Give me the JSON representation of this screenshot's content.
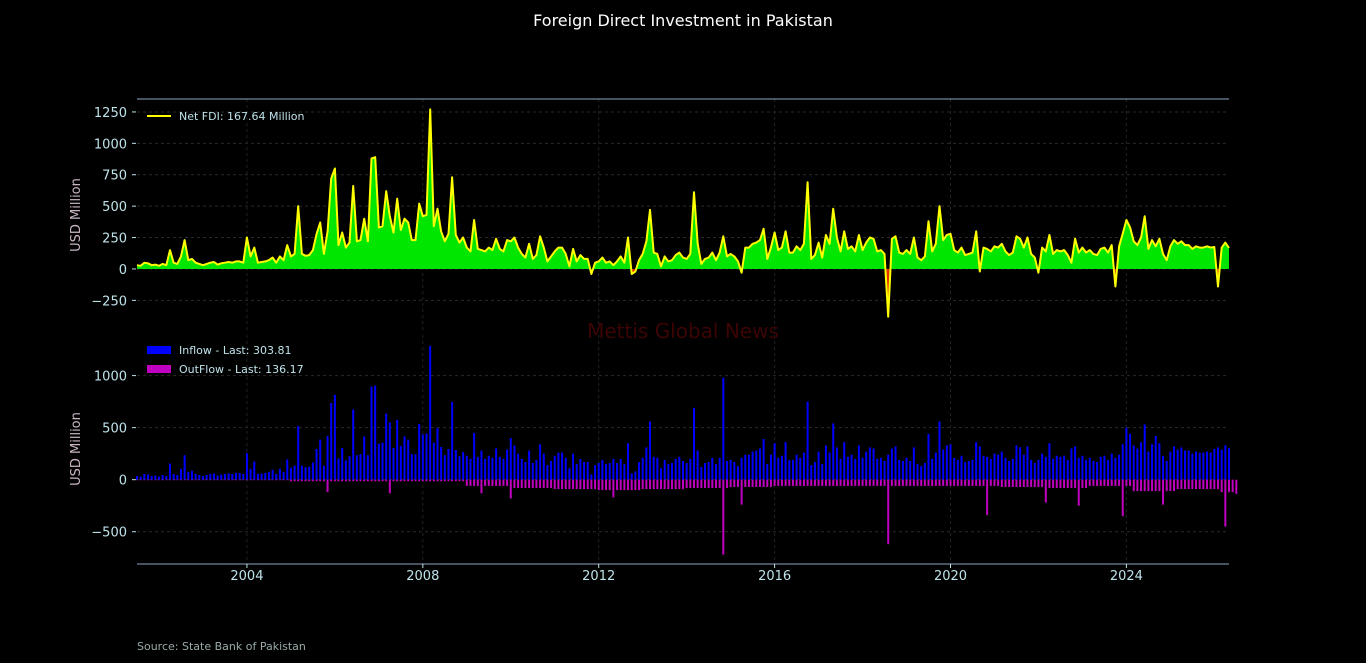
{
  "title": "Foreign Direct Investment in Pakistan",
  "source": "Source: State Bank of Pakistan",
  "watermark": "Mettis Global News",
  "colors": {
    "net_line": "#ffff00",
    "positive_fill": "#00e600",
    "negative_fill": "#e03000",
    "inflow": "#0000ff",
    "outflow": "#c000c0"
  },
  "chart_data": [
    {
      "type": "area",
      "ylabel": "USD Million",
      "ylim": [
        -486,
        1353
      ],
      "yticks": [
        -250,
        0,
        250,
        500,
        750,
        1000,
        1250
      ],
      "grid": true,
      "legend_position": "top-left",
      "legend": "Net FDI: 167.64 Million",
      "x_start": "2001-07",
      "x_frequency": "monthly",
      "series": [
        {
          "name": "Net FDI",
          "values": [
            30,
            25,
            50,
            45,
            30,
            35,
            25,
            40,
            30,
            150,
            50,
            40,
            100,
            230,
            70,
            80,
            50,
            40,
            30,
            40,
            50,
            55,
            35,
            45,
            50,
            55,
            50,
            60,
            60,
            50,
            250,
            100,
            170,
            50,
            55,
            60,
            70,
            90,
            50,
            100,
            70,
            190,
            100,
            120,
            500,
            120,
            105,
            110,
            150,
            280,
            370,
            120,
            300,
            720,
            800,
            190,
            290,
            170,
            210,
            660,
            220,
            230,
            400,
            220,
            880,
            890,
            330,
            340,
            620,
            420,
            290,
            560,
            310,
            400,
            370,
            230,
            230,
            520,
            420,
            430,
            1270,
            340,
            480,
            300,
            220,
            280,
            730,
            270,
            210,
            250,
            170,
            140,
            390,
            160,
            150,
            140,
            170,
            150,
            240,
            160,
            140,
            230,
            220,
            250,
            170,
            120,
            90,
            200,
            80,
            110,
            260,
            170,
            60,
            100,
            140,
            170,
            170,
            120,
            20,
            160,
            60,
            110,
            80,
            80,
            -40,
            50,
            60,
            90,
            50,
            60,
            30,
            60,
            100,
            50,
            250,
            -40,
            -20,
            70,
            120,
            220,
            470,
            130,
            120,
            20,
            100,
            60,
            70,
            110,
            130,
            90,
            80,
            120,
            610,
            200,
            40,
            80,
            90,
            130,
            70,
            130,
            260,
            100,
            120,
            100,
            60,
            -30,
            170,
            170,
            200,
            210,
            230,
            320,
            80,
            170,
            290,
            150,
            170,
            300,
            130,
            130,
            180,
            150,
            200,
            690,
            80,
            110,
            210,
            90,
            270,
            200,
            480,
            250,
            140,
            300,
            160,
            180,
            140,
            270,
            150,
            210,
            250,
            240,
            140,
            150,
            120,
            -380,
            240,
            260,
            130,
            120,
            150,
            120,
            250,
            90,
            70,
            100,
            380,
            140,
            200,
            500,
            230,
            270,
            280,
            150,
            130,
            170,
            110,
            120,
            130,
            300,
            -20,
            170,
            160,
            140,
            180,
            170,
            200,
            140,
            110,
            130,
            260,
            240,
            170,
            250,
            120,
            90,
            -30,
            170,
            140,
            270,
            120,
            150,
            140,
            150,
            110,
            50,
            240,
            130,
            170,
            130,
            150,
            120,
            110,
            160,
            170,
            130,
            190,
            -140,
            180,
            280,
            390,
            330,
            220,
            190,
            250,
            420,
            160,
            230,
            180,
            240,
            120,
            70,
            180,
            230,
            200,
            220,
            190,
            190,
            160,
            180,
            170,
            170,
            180,
            170,
            175,
            -140,
            170,
            210,
            167.64
          ]
        }
      ]
    },
    {
      "type": "bar",
      "ylabel": "USD Million",
      "ylim": [
        -810,
        1390
      ],
      "yticks": [
        -500,
        0,
        500,
        1000
      ],
      "xticks": [
        "2004",
        "2008",
        "2012",
        "2016",
        "2020",
        "2024"
      ],
      "grid": true,
      "legend_position": "top-left",
      "x_start": "2001-07",
      "x_frequency": "monthly",
      "series": [
        {
          "name": "Inflow - Last: 303.81",
          "values": [
            35,
            30,
            55,
            50,
            35,
            40,
            30,
            45,
            35,
            155,
            55,
            45,
            105,
            235,
            75,
            85,
            55,
            45,
            35,
            45,
            55,
            60,
            40,
            50,
            55,
            60,
            55,
            65,
            65,
            55,
            255,
            105,
            175,
            55,
            60,
            65,
            75,
            95,
            55,
            105,
            75,
            195,
            115,
            135,
            515,
            135,
            120,
            125,
            165,
            295,
            385,
            135,
            420,
            735,
            815,
            205,
            305,
            185,
            225,
            675,
            235,
            245,
            415,
            235,
            895,
            905,
            345,
            355,
            635,
            550,
            305,
            575,
            325,
            415,
            385,
            245,
            245,
            535,
            435,
            445,
            1285,
            355,
            495,
            315,
            235,
            295,
            745,
            285,
            225,
            265,
            230,
            200,
            450,
            220,
            280,
            200,
            230,
            210,
            300,
            220,
            200,
            290,
            400,
            330,
            250,
            200,
            170,
            280,
            160,
            190,
            340,
            250,
            140,
            180,
            230,
            260,
            260,
            210,
            110,
            250,
            150,
            200,
            170,
            170,
            50,
            140,
            160,
            190,
            150,
            160,
            200,
            160,
            200,
            150,
            350,
            60,
            80,
            170,
            210,
            310,
            560,
            220,
            210,
            110,
            190,
            150,
            160,
            200,
            220,
            180,
            160,
            200,
            690,
            280,
            120,
            160,
            170,
            210,
            150,
            210,
            980,
            180,
            190,
            170,
            130,
            210,
            240,
            240,
            270,
            280,
            300,
            390,
            150,
            240,
            350,
            210,
            230,
            360,
            190,
            190,
            240,
            210,
            260,
            750,
            140,
            170,
            270,
            150,
            330,
            260,
            540,
            310,
            200,
            360,
            220,
            240,
            200,
            330,
            210,
            270,
            310,
            300,
            200,
            210,
            180,
            240,
            300,
            320,
            190,
            180,
            210,
            180,
            310,
            150,
            130,
            160,
            440,
            200,
            260,
            560,
            290,
            330,
            340,
            210,
            190,
            230,
            170,
            180,
            190,
            360,
            320,
            230,
            220,
            200,
            250,
            240,
            270,
            210,
            180,
            200,
            330,
            310,
            240,
            320,
            190,
            160,
            190,
            250,
            220,
            350,
            200,
            230,
            220,
            230,
            190,
            300,
            320,
            210,
            230,
            190,
            210,
            180,
            170,
            220,
            230,
            190,
            250,
            210,
            240,
            340,
            500,
            440,
            330,
            300,
            360,
            530,
            270,
            340,
            420,
            350,
            230,
            180,
            270,
            320,
            290,
            310,
            280,
            280,
            250,
            270,
            260,
            260,
            270,
            260,
            295,
            310,
            290,
            330,
            303.81
          ]
        },
        {
          "name": "OutFlow - Last: 136.17",
          "values": [
            5,
            5,
            5,
            5,
            5,
            5,
            5,
            5,
            5,
            5,
            5,
            5,
            5,
            5,
            5,
            5,
            5,
            5,
            5,
            5,
            5,
            5,
            5,
            5,
            5,
            5,
            5,
            5,
            5,
            5,
            5,
            5,
            5,
            5,
            5,
            5,
            5,
            5,
            5,
            5,
            5,
            5,
            15,
            15,
            15,
            15,
            15,
            15,
            15,
            15,
            15,
            15,
            120,
            15,
            15,
            15,
            15,
            15,
            15,
            15,
            15,
            15,
            15,
            15,
            15,
            15,
            15,
            15,
            15,
            130,
            15,
            15,
            15,
            15,
            15,
            15,
            15,
            15,
            15,
            15,
            15,
            15,
            15,
            15,
            15,
            15,
            15,
            15,
            15,
            15,
            60,
            60,
            60,
            60,
            130,
            60,
            60,
            60,
            60,
            60,
            60,
            60,
            180,
            80,
            80,
            80,
            80,
            80,
            80,
            80,
            80,
            80,
            80,
            80,
            90,
            90,
            90,
            90,
            90,
            90,
            90,
            90,
            90,
            90,
            90,
            90,
            100,
            100,
            100,
            100,
            170,
            100,
            100,
            100,
            100,
            100,
            100,
            100,
            90,
            90,
            90,
            90,
            90,
            90,
            90,
            90,
            90,
            90,
            90,
            90,
            80,
            80,
            80,
            80,
            80,
            80,
            80,
            80,
            80,
            80,
            720,
            80,
            70,
            70,
            70,
            240,
            70,
            70,
            70,
            70,
            70,
            70,
            70,
            70,
            60,
            60,
            60,
            60,
            60,
            60,
            60,
            60,
            60,
            60,
            60,
            60,
            60,
            60,
            60,
            60,
            60,
            60,
            60,
            60,
            60,
            60,
            60,
            60,
            60,
            60,
            60,
            60,
            60,
            60,
            60,
            620,
            60,
            60,
            60,
            60,
            60,
            60,
            60,
            60,
            60,
            60,
            60,
            60,
            60,
            60,
            60,
            60,
            60,
            60,
            60,
            60,
            60,
            60,
            60,
            60,
            60,
            60,
            340,
            60,
            60,
            60,
            70,
            70,
            70,
            70,
            70,
            70,
            70,
            70,
            70,
            70,
            70,
            70,
            220,
            80,
            80,
            80,
            80,
            80,
            80,
            80,
            80,
            250,
            80,
            80,
            60,
            60,
            60,
            60,
            60,
            60,
            60,
            60,
            60,
            350,
            60,
            60,
            110,
            110,
            110,
            110,
            110,
            110,
            110,
            110,
            240,
            110,
            110,
            110,
            90,
            90,
            90,
            90,
            90,
            90,
            90,
            90,
            90,
            90,
            90,
            90,
            120,
            450,
            120,
            120,
            136.17
          ]
        }
      ]
    }
  ]
}
